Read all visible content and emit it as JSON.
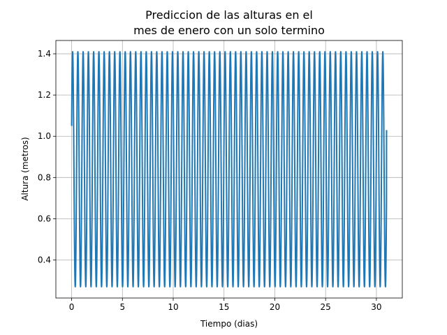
{
  "chart_data": {
    "type": "line",
    "title_lines": [
      "Prediccion de las alturas en el",
      "mes de enero con un solo termino"
    ],
    "xlabel": "Tiempo (dias)",
    "ylabel": "Altura (metros)",
    "xlim": [
      -1.55,
      32.55
    ],
    "ylim": [
      0.2155,
      1.4645
    ],
    "xticks": [
      0,
      5,
      10,
      15,
      20,
      25,
      30
    ],
    "yticks": [
      0.4,
      0.6,
      0.8,
      1.0,
      1.2,
      1.4
    ],
    "xtick_labels": [
      "0",
      "5",
      "10",
      "15",
      "20",
      "25",
      "30"
    ],
    "ytick_labels": [
      "0.4",
      "0.6",
      "0.8",
      "1.0",
      "1.2",
      "1.4"
    ],
    "grid": true,
    "series": [
      {
        "color": "#1f77b4",
        "mean": 0.84,
        "amplitude": 0.57,
        "period_days": 0.5175,
        "start_value": 1.05,
        "end_value": 1.03,
        "x_range": [
          0,
          31
        ]
      }
    ]
  }
}
